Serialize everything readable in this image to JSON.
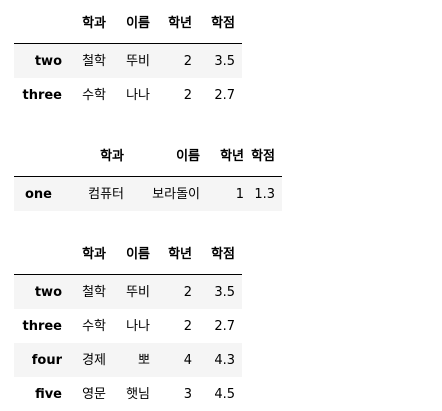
{
  "columns": [
    "학과",
    "이름",
    "학년",
    "학점"
  ],
  "tables": [
    {
      "rows": [
        {
          "index": "two",
          "cells": [
            "철학",
            "뚜비",
            "2",
            "3.5"
          ]
        },
        {
          "index": "three",
          "cells": [
            "수학",
            "나나",
            "2",
            "2.7"
          ]
        }
      ]
    },
    {
      "rows": [
        {
          "index": "one",
          "cells": [
            "컴퓨터",
            "보라돌이",
            "1",
            "1.3"
          ]
        }
      ]
    },
    {
      "rows": [
        {
          "index": "two",
          "cells": [
            "철학",
            "뚜비",
            "2",
            "3.5"
          ]
        },
        {
          "index": "three",
          "cells": [
            "수학",
            "나나",
            "2",
            "2.7"
          ]
        },
        {
          "index": "four",
          "cells": [
            "경제",
            "뽀",
            "4",
            "4.3"
          ]
        },
        {
          "index": "five",
          "cells": [
            "영문",
            "햇님",
            "3",
            "4.5"
          ]
        }
      ]
    }
  ]
}
